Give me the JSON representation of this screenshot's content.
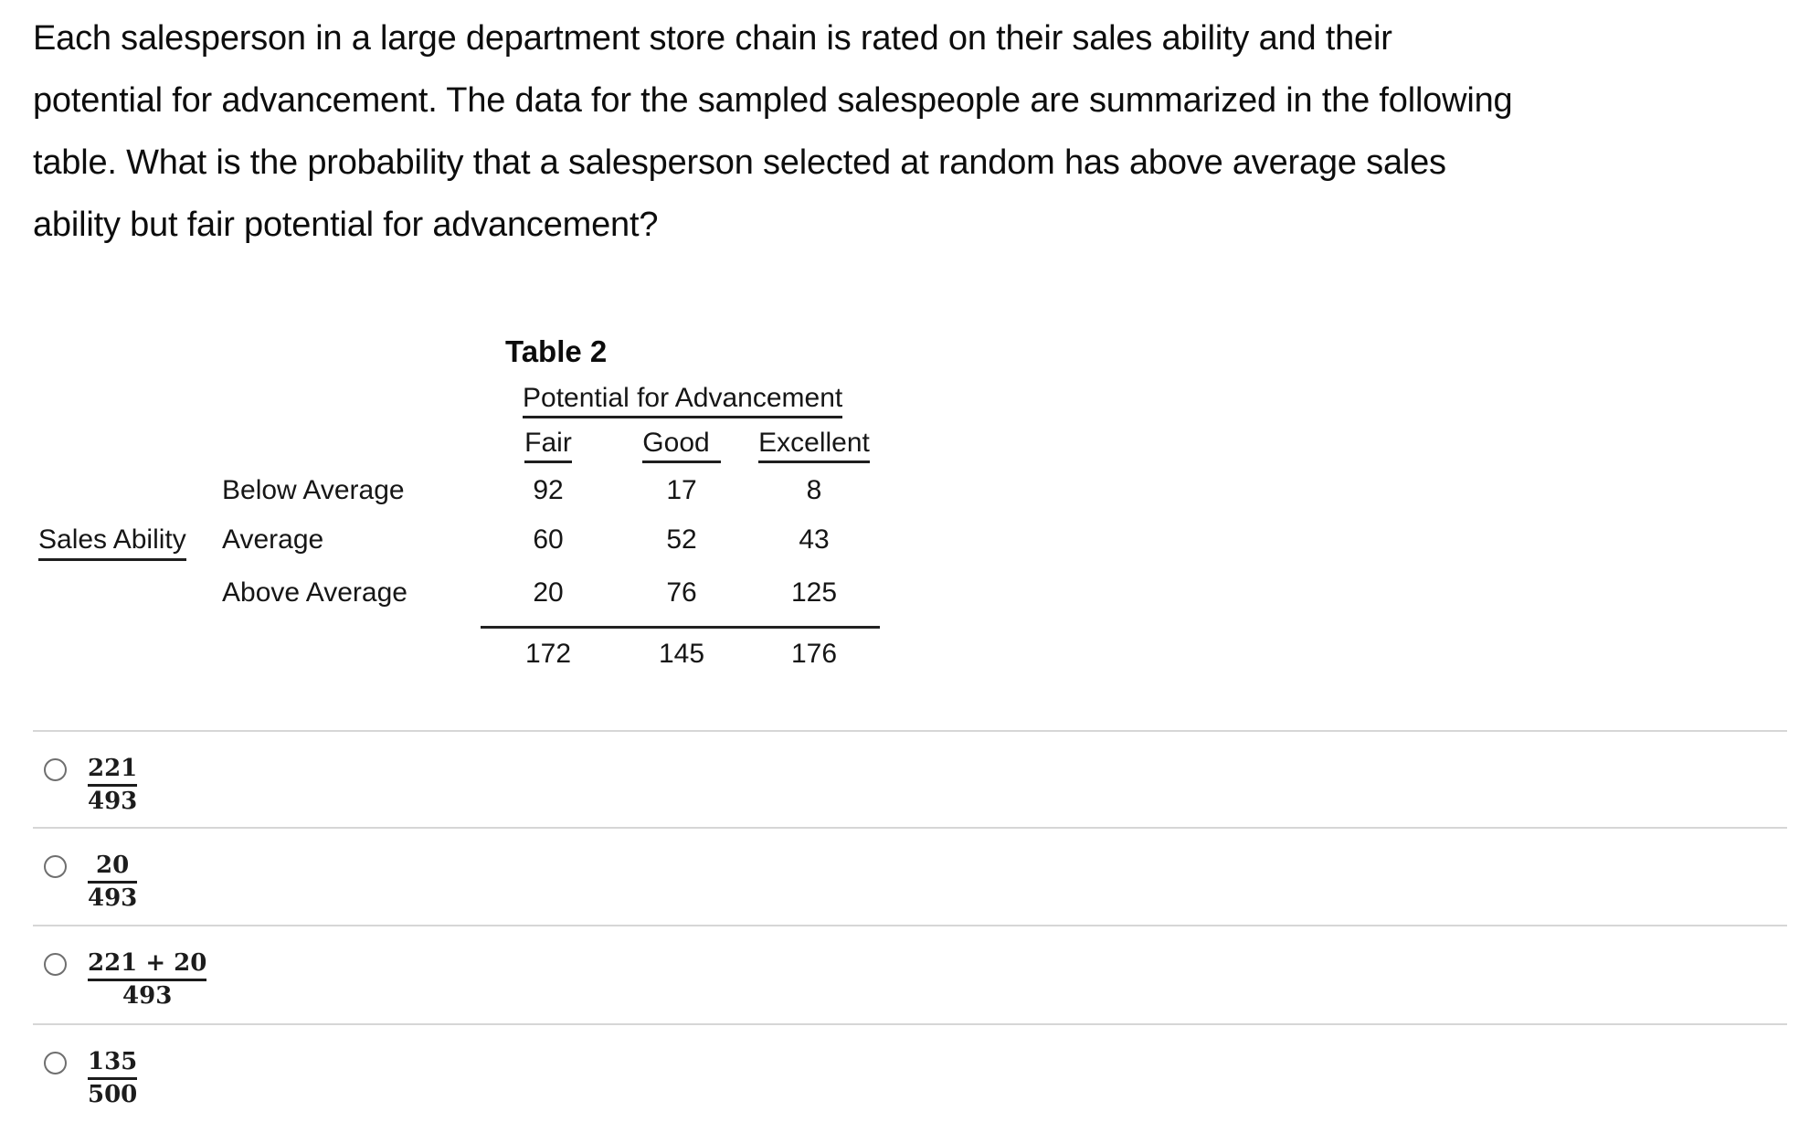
{
  "question": {
    "lines": [
      "Each salesperson in a large department store chain is rated on their sales ability and their",
      "potential for advancement. The data for the sampled salespeople are summarized in the following",
      "table. What is the probability that a salesperson selected at random has above average sales",
      "ability but fair potential for advancement?"
    ]
  },
  "table": {
    "title": "Table 2",
    "column_group_header": "Potential for Advancement",
    "columns": [
      "Fair",
      "Good",
      "Excellent"
    ],
    "row_group_header": "Sales Ability",
    "rows": [
      {
        "label": "Below Average",
        "values": [
          "92",
          "17",
          "8"
        ]
      },
      {
        "label": "Average",
        "values": [
          "60",
          "52",
          "43"
        ]
      },
      {
        "label": "Above Average",
        "values": [
          "20",
          "76",
          "125"
        ]
      }
    ],
    "column_totals": [
      "172",
      "145",
      "176"
    ]
  },
  "options": [
    {
      "numerator": "221",
      "denominator": "493"
    },
    {
      "numerator": "20",
      "denominator": "493"
    },
    {
      "numerator": "221 + 20",
      "denominator": "493"
    },
    {
      "numerator": "135",
      "denominator": "500"
    }
  ],
  "colors": {
    "page_background": "#ffffff",
    "text": "#0d0d0d",
    "table_rule": "#222222",
    "option_divider": "#d6d6d6",
    "radio_border": "#6f6f6f",
    "fraction_ink": "#1c1c1c"
  }
}
